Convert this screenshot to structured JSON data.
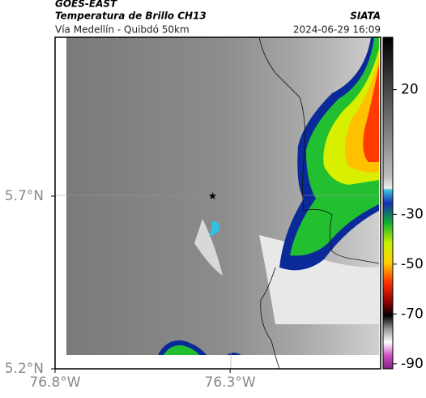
{
  "header": {
    "source": "GOES-EAST",
    "title": "Temperatura de Brillo CH13",
    "organization": "SIATA",
    "subtitle": "Vía Medellín - Quibdó 50km",
    "datetime": "2024-06-29 16:09"
  },
  "map": {
    "lat_range": [
      5.2,
      6.16
    ],
    "lon_range": [
      -76.8,
      -75.87
    ],
    "lat_ticks": [
      {
        "value": 5.7,
        "label": "5.7°N"
      },
      {
        "value": 5.2,
        "label": "5.2°N"
      }
    ],
    "lon_ticks": [
      {
        "value": -76.8,
        "label": "76.8°W"
      },
      {
        "value": -76.3,
        "label": "76.3°W"
      }
    ],
    "marker": {
      "lon": -76.35,
      "lat": 5.7
    }
  },
  "colorbar": {
    "range": [
      -92,
      41
    ],
    "ticks": [
      20,
      -30,
      -50,
      -70,
      -90
    ]
  }
}
